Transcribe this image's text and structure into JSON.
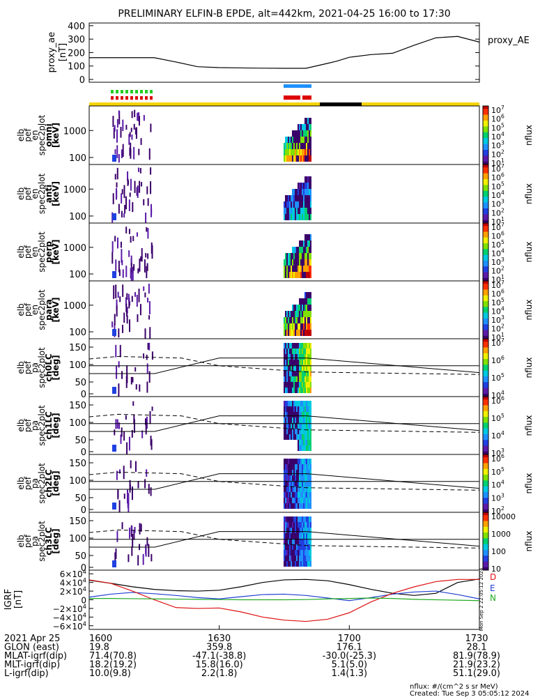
{
  "title": "PRELIMINARY ELFIN-B EPDE, alt=442km, 2021-04-25 16:00 to 17:30",
  "colors": {
    "orbit_bar": "#f5d300",
    "shadow_bar": "#000000",
    "marker_green": "#22cc22",
    "marker_red": "#dd0000",
    "marker_blue": "#1e90ff",
    "ae_line": "#000000",
    "bx": "#000000",
    "by": "#1f3fd0",
    "bz": "#dd1111",
    "bt": "#22aa22"
  },
  "chart_data": [
    {
      "type": "line",
      "name": "proxy_AE",
      "ylabel": [
        "proxy_ae",
        "[nT]"
      ],
      "legend": "proxy_AE",
      "ylim": [
        0,
        420
      ],
      "yticks": [
        "400",
        "300",
        "200",
        "100",
        "0"
      ],
      "x": [
        1600,
        1610,
        1615,
        1620,
        1625,
        1630,
        1635,
        1640,
        1645,
        1650,
        1655,
        1657,
        1700,
        1705,
        1710,
        1715,
        1720,
        1725,
        1730
      ],
      "values": [
        162,
        162,
        162,
        130,
        95,
        88,
        86,
        84,
        83,
        83,
        120,
        135,
        165,
        185,
        195,
        255,
        310,
        320,
        278
      ]
    },
    {
      "type": "heatmap",
      "name": "energy spectrogram omni",
      "ylabel": [
        "elb",
        "pef",
        "en",
        "spec2plot",
        "omni",
        "[keV]"
      ],
      "yticks": [
        "1000",
        "100"
      ],
      "colorbar": {
        "ticks": [
          "10^7",
          "10^6",
          "10^5",
          "10^4",
          "10^3",
          "10^2",
          "10^1"
        ],
        "label": "nflux"
      }
    },
    {
      "type": "heatmap",
      "name": "energy spectrogram anti",
      "ylabel": [
        "elb",
        "pef",
        "en",
        "spec2plot",
        "anti",
        "[keV]"
      ],
      "yticks": [
        "1000",
        "100"
      ],
      "colorbar": {
        "ticks": [
          "10^7",
          "10^6",
          "10^5",
          "10^4",
          "10^3",
          "10^2",
          "10^1"
        ],
        "label": "nflux"
      }
    },
    {
      "type": "heatmap",
      "name": "energy spectrogram perp",
      "ylabel": [
        "elb",
        "pef",
        "en",
        "spec2plot",
        "perp",
        "[keV]"
      ],
      "yticks": [
        "1000",
        "100"
      ],
      "colorbar": {
        "ticks": [
          "10^7",
          "10^6",
          "10^5",
          "10^4",
          "10^3",
          "10^2",
          "10^1"
        ],
        "label": "nflux"
      }
    },
    {
      "type": "heatmap",
      "name": "energy spectrogram para",
      "ylabel": [
        "elb",
        "pef",
        "en",
        "spec2plot",
        "para",
        "[keV]"
      ],
      "yticks": [
        "1000",
        "100"
      ],
      "colorbar": {
        "ticks": [
          "10^7",
          "10^6",
          "10^5",
          "10^4",
          "10^3",
          "10^2",
          "10^1"
        ],
        "label": "nflux"
      }
    },
    {
      "type": "heatmap",
      "name": "pitch angle ch0",
      "ylabel": [
        "elb",
        "pef",
        "pa",
        "spec2plot",
        "ch0LC",
        "[deg]"
      ],
      "yticks": [
        "150",
        "100",
        "50",
        "0"
      ],
      "colorbar": {
        "ticks": [
          "10^7",
          "10^6",
          "10^5",
          "10^4"
        ],
        "label": "nflux"
      }
    },
    {
      "type": "heatmap",
      "name": "pitch angle ch1",
      "ylabel": [
        "elb",
        "pef",
        "pa",
        "spec2plot",
        "ch1LC",
        "[deg]"
      ],
      "yticks": [
        "150",
        "100",
        "50",
        "0"
      ],
      "colorbar": {
        "ticks": [
          "10^6",
          "10^5",
          "10^4",
          "10^3"
        ],
        "label": "nflux"
      }
    },
    {
      "type": "heatmap",
      "name": "pitch angle ch2",
      "ylabel": [
        "elb",
        "pef",
        "pa",
        "spec2plot",
        "ch2LC",
        "[deg]"
      ],
      "yticks": [
        "150",
        "100",
        "50",
        "0"
      ],
      "colorbar": {
        "ticks": [
          "10^6",
          "10^5",
          "10^4",
          "10^3",
          "10^2"
        ],
        "label": "nflux"
      }
    },
    {
      "type": "heatmap",
      "name": "pitch angle ch3",
      "ylabel": [
        "elb",
        "pef",
        "pa",
        "spec2plot",
        "ch3LC",
        "[deg]"
      ],
      "yticks": [
        "150",
        "100",
        "50",
        "0"
      ],
      "colorbar": {
        "ticks": [
          "10000",
          "1000",
          "100",
          "10"
        ],
        "label": "nflux"
      }
    },
    {
      "type": "line",
      "name": "IGRF",
      "ylabel": [
        "IGRF",
        "[nT]"
      ],
      "ylim": [
        -62000,
        62000
      ],
      "yticks": [
        "6×10^4",
        "4×10^4",
        "2×10^4",
        "0",
        "−2×10^4",
        "−4×10^4",
        "−6×10^4"
      ],
      "x": [
        1600,
        1605,
        1610,
        1615,
        1620,
        1625,
        1630,
        1635,
        1640,
        1645,
        1650,
        1655,
        1700,
        1705,
        1710,
        1715,
        1720,
        1725,
        1730
      ],
      "series": [
        {
          "name": "bx",
          "values": [
            45000,
            38000,
            30000,
            24000,
            21000,
            20000,
            22000,
            30000,
            40000,
            46000,
            47000,
            44000,
            35000,
            24000,
            15000,
            10000,
            15000,
            40000,
            48000
          ]
        },
        {
          "name": "by",
          "values": [
            6000,
            13000,
            17000,
            14000,
            10000,
            5000,
            2000,
            7000,
            12000,
            13000,
            10000,
            4000,
            -2000,
            5000,
            13000,
            18000,
            20000,
            12000,
            2000
          ]
        },
        {
          "name": "bz",
          "values": [
            46000,
            38000,
            20000,
            0,
            -18000,
            -20000,
            -19000,
            -28000,
            -40000,
            -47000,
            -50000,
            -45000,
            -30000,
            -5000,
            15000,
            30000,
            42000,
            47000,
            47000
          ]
        },
        {
          "name": "bt",
          "values": [
            3000,
            3000,
            2500,
            2000,
            1500,
            1000,
            500,
            0,
            0,
            0,
            500,
            2000,
            3000,
            4000,
            3000,
            1000,
            0,
            -1000,
            -2000
          ]
        }
      ],
      "side_labels": [
        "D",
        "E",
        "N"
      ]
    }
  ],
  "xaxis": {
    "rows": [
      {
        "label": "2021 Apr 25",
        "values": [
          "1600",
          "1630",
          "1700",
          "1730"
        ]
      },
      {
        "label": "GLON (east)",
        "values": [
          "19.8",
          "359.8",
          "176.1",
          "28.1"
        ]
      },
      {
        "label": "MLAT-igrf(dip)",
        "values": [
          "71.4(70.8)",
          "-47.1(-38.8)",
          "-30.0(-25.3)",
          "81.9(78.9)"
        ]
      },
      {
        "label": "MLT-igrf(dip)",
        "values": [
          "18.2(19.2)",
          "15.8(16.0)",
          "5.1(5.0)",
          "21.9(23.2)"
        ]
      },
      {
        "label": "L-igrf(dip)",
        "values": [
          "10.0(9.8)",
          "2.2(1.8)",
          "1.4(1.3)",
          "51.1(29.0)"
        ]
      }
    ]
  },
  "footer": {
    "units": "nflux: #/(cm^2 s sr MeV)",
    "created": "Created: Tue Sep  3 05:05:12 2024",
    "side_stamp": "Mon Sep  2 22:05:12 2024"
  }
}
